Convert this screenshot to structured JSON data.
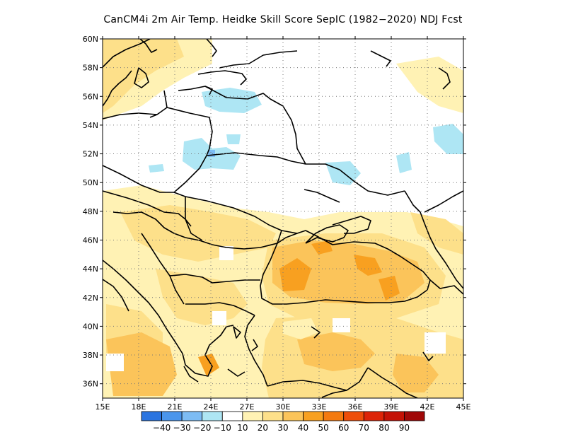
{
  "title": "CanCM4i  2m Air Temp. Heidke Skill Score SepIC (1982−2020) NDJ Fcst",
  "map": {
    "lon_range": [
      15,
      45
    ],
    "lat_range": [
      35,
      60
    ],
    "lat_ticks": [
      {
        "value": 60,
        "label": "60N"
      },
      {
        "value": 58,
        "label": "58N"
      },
      {
        "value": 56,
        "label": "56N"
      },
      {
        "value": 54,
        "label": "54N"
      },
      {
        "value": 52,
        "label": "52N"
      },
      {
        "value": 50,
        "label": "50N"
      },
      {
        "value": 48,
        "label": "48N"
      },
      {
        "value": 46,
        "label": "46N"
      },
      {
        "value": 44,
        "label": "44N"
      },
      {
        "value": 42,
        "label": "42N"
      },
      {
        "value": 40,
        "label": "40N"
      },
      {
        "value": 38,
        "label": "38N"
      },
      {
        "value": 36,
        "label": "36N"
      }
    ],
    "lon_ticks": [
      {
        "value": 15,
        "label": "15E"
      },
      {
        "value": 18,
        "label": "18E"
      },
      {
        "value": 21,
        "label": "21E"
      },
      {
        "value": 24,
        "label": "24E"
      },
      {
        "value": 27,
        "label": "27E"
      },
      {
        "value": 30,
        "label": "30E"
      },
      {
        "value": 33,
        "label": "33E"
      },
      {
        "value": 36,
        "label": "36E"
      },
      {
        "value": 39,
        "label": "39E"
      },
      {
        "value": 42,
        "label": "42E"
      },
      {
        "value": 45,
        "label": "45E"
      }
    ],
    "grid": true
  },
  "colorbar": {
    "colors": [
      "#2a74e0",
      "#4a95ec",
      "#7dbcf4",
      "#aee6f4",
      "#ffffff",
      "#fff2b4",
      "#fde08a",
      "#fbc45a",
      "#f8a020",
      "#f47a10",
      "#ee4e0a",
      "#dd2408",
      "#c41206",
      "#a00808"
    ],
    "labels": [
      "−40",
      "−30",
      "−20",
      "−10",
      "10",
      "20",
      "30",
      "40",
      "50",
      "60",
      "70",
      "80",
      "90"
    ]
  },
  "region_colors": {
    "light_yellow": "#fff2b4",
    "yellow": "#fde08a",
    "orange": "#fbc45a",
    "dark_orange": "#f8a020",
    "light_blue": "#aee6f4",
    "blue": "#7dbcf4"
  }
}
